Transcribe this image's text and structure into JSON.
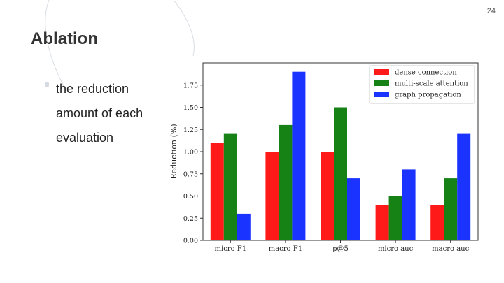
{
  "page_number": "24",
  "slide": {
    "title": "Ablation",
    "bullet": "the reduction amount of each evaluation"
  },
  "chart_data": {
    "type": "bar",
    "categories": [
      "micro F1",
      "macro F1",
      "p@5",
      "micro auc",
      "macro auc"
    ],
    "series": [
      {
        "name": "dense connection",
        "color": "#ff1a1a",
        "values": [
          1.1,
          1.0,
          1.0,
          0.4,
          0.4
        ]
      },
      {
        "name": "multi-scale attention",
        "color": "#168216",
        "values": [
          1.2,
          1.3,
          1.5,
          0.5,
          0.7
        ]
      },
      {
        "name": "graph propagation",
        "color": "#1a33ff",
        "values": [
          0.3,
          1.9,
          0.7,
          0.8,
          1.2
        ]
      }
    ],
    "ylabel": "Reduction (%)",
    "xlabel": "",
    "ylim": [
      0,
      2.0
    ],
    "yticks": [
      "0.00",
      "0.25",
      "0.50",
      "0.75",
      "1.00",
      "1.25",
      "1.50",
      "1.75"
    ],
    "ytick_values": [
      0,
      0.25,
      0.5,
      0.75,
      1.0,
      1.25,
      1.5,
      1.75
    ],
    "legend_position": "top-right",
    "grid": false
  }
}
